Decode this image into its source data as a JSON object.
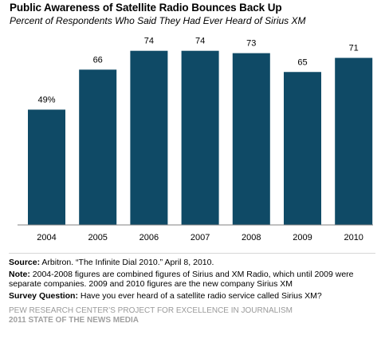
{
  "header": {
    "title": "Public Awareness  of Satellite Radio Bounces Back Up",
    "subtitle": "Percent of Respondents Who Said They Had Ever Heard of Sirius XM"
  },
  "colors": {
    "bar": "#0f4a66",
    "axis": "#808080",
    "footer": "#9a9a9a"
  },
  "chart_data": {
    "type": "bar",
    "categories": [
      "2004",
      "2005",
      "2006",
      "2007",
      "2008",
      "2009",
      "2010"
    ],
    "values": [
      49,
      66,
      74,
      74,
      73,
      65,
      71
    ],
    "value_labels": [
      "49%",
      "66",
      "74",
      "74",
      "73",
      "65",
      "71"
    ],
    "ylim": [
      0,
      80
    ],
    "xlabel": "",
    "ylabel": "",
    "grid": false
  },
  "notes": {
    "source_label": "Source:",
    "source_text": "  Arbitron. “The Infinite Dial 2010.” April 8, 2010.",
    "note_label": "Note:",
    "note_text": " 2004-2008 figures are combined figures of Sirius and XM Radio, which until 2009 were separate companies. 2009 and 2010 figures are the new company Sirius XM",
    "question_label": "Survey Question:",
    "question_text": " Have you ever heard of a satellite radio service called Sirius XM?"
  },
  "footer": {
    "line1": "PEW RESEARCH CENTER’S PROJECT FOR EXCELLENCE IN JOURNALISM",
    "line2": "2011 STATE OF THE NEWS MEDIA"
  }
}
